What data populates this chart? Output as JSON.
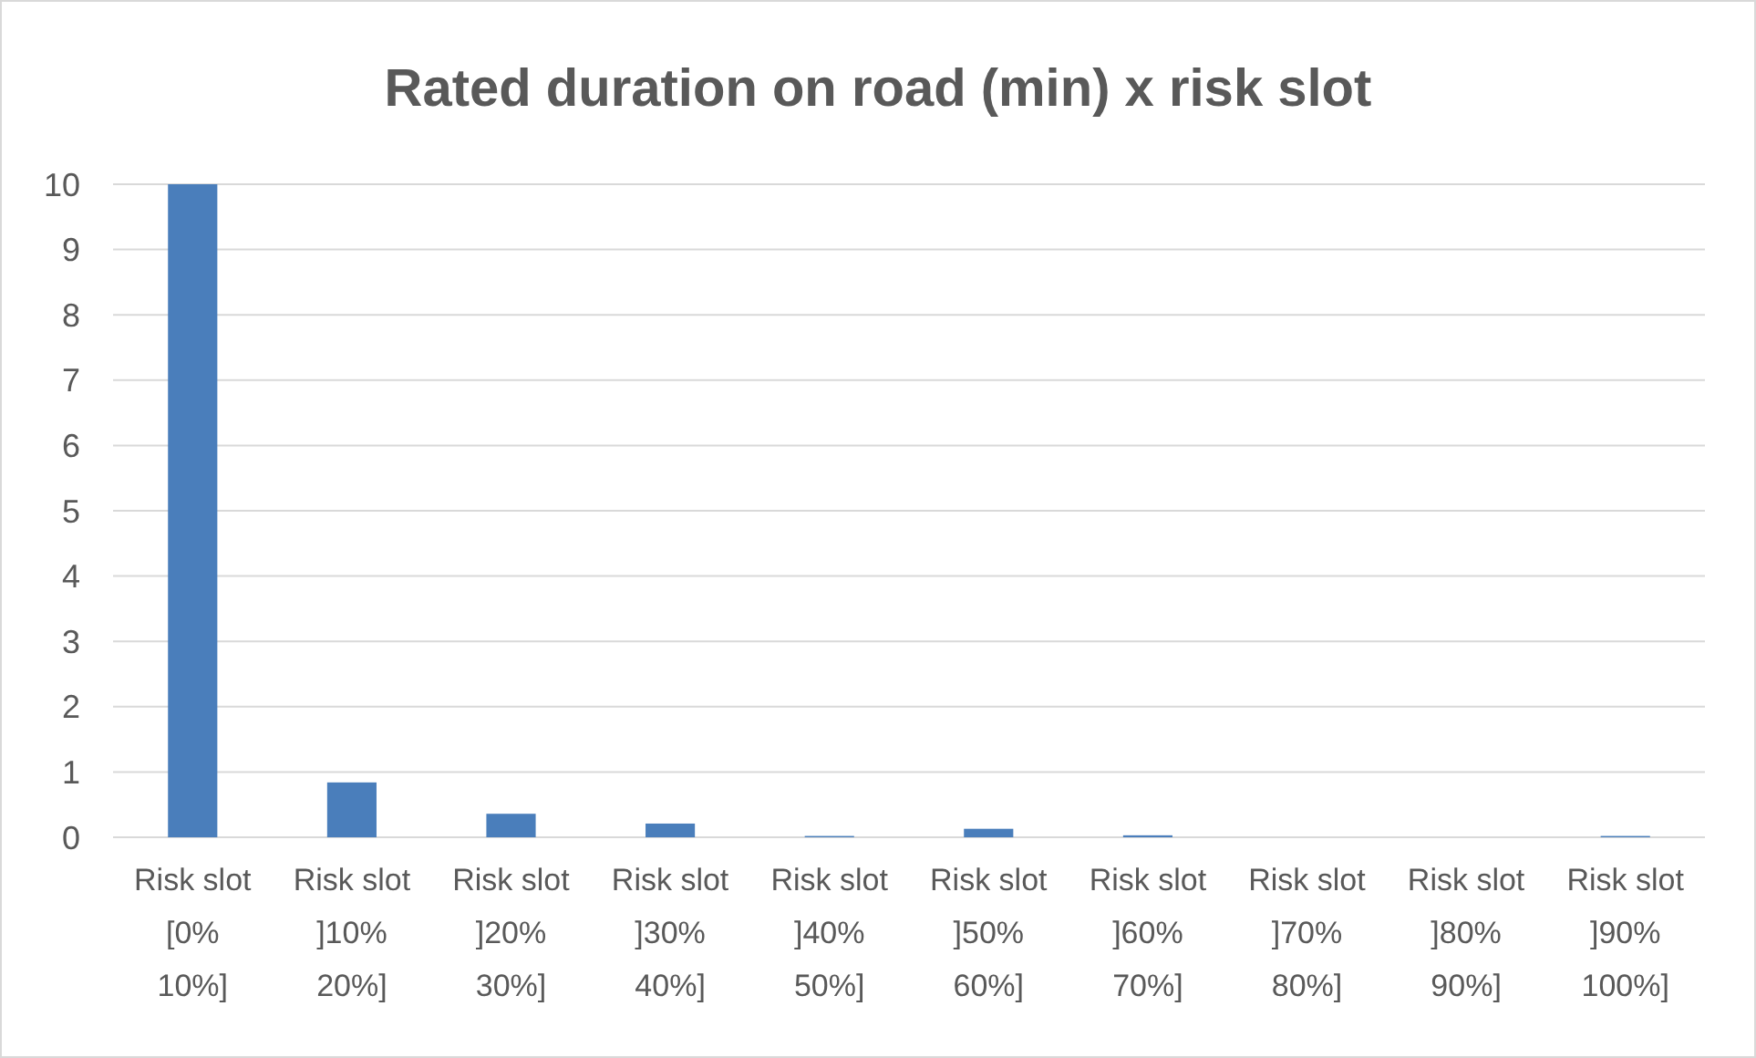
{
  "chart_data": {
    "type": "bar",
    "title": "Rated duration on road (min) x risk slot",
    "categories": [
      "Risk slot [0% 10%]",
      "Risk slot ]10% 20%]",
      "Risk slot ]20% 30%]",
      "Risk slot ]30% 40%]",
      "Risk slot ]40% 50%]",
      "Risk slot ]50% 60%]",
      "Risk slot ]60% 70%]",
      "Risk slot ]70% 80%]",
      "Risk slot ]80% 90%]",
      "Risk slot ]90% 100%]"
    ],
    "values": [
      10,
      0.84,
      0.36,
      0.21,
      0.02,
      0.13,
      0.03,
      0,
      0,
      0.02
    ],
    "color": "#4a7ebb",
    "ylim": [
      0,
      10
    ],
    "yticks": [
      0,
      1,
      2,
      3,
      4,
      5,
      6,
      7,
      8,
      9,
      10
    ],
    "grid": "y"
  }
}
